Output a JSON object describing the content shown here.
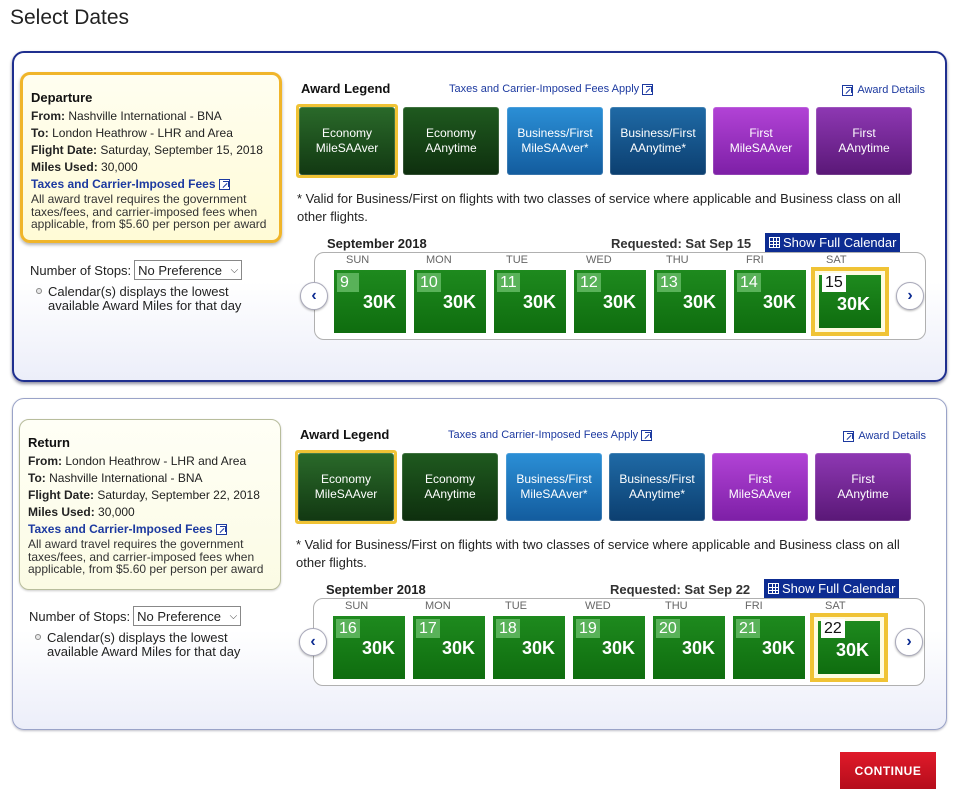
{
  "page_title": "Select Dates",
  "legend": {
    "title": "Award Legend",
    "fees_apply": "Taxes and Carrier-Imposed Fees Apply",
    "award_details": "Award Details",
    "items": [
      {
        "line1": "Economy",
        "line2": "MileSAAver"
      },
      {
        "line1": "Economy",
        "line2": "AAnytime"
      },
      {
        "line1": "Business/First",
        "line2": "MileSAAver*"
      },
      {
        "line1": "Business/First",
        "line2": "AAnytime*"
      },
      {
        "line1": "First",
        "line2": "MileSAAver"
      },
      {
        "line1": "First",
        "line2": "AAnytime"
      }
    ],
    "valid_note": "* Valid for Business/First on flights with two classes of service where applicable and Business class on all other flights."
  },
  "labels": {
    "from": "From:",
    "to": "To:",
    "flight_date": "Flight Date:",
    "miles_used": "Miles Used:",
    "fees_link": "Taxes and Carrier-Imposed Fees",
    "fees_note": "All award travel requires the government taxes/fees, and carrier-imposed fees when applicable, from $5.60 per person per award",
    "stops_label": "Number of Stops:",
    "stops_value": "No Preference",
    "cal_note": "Calendar(s) displays the lowest available Award Miles for that day",
    "show_full_calendar": "Show Full Calendar"
  },
  "days_of_week": [
    "SUN",
    "MON",
    "TUE",
    "WED",
    "THU",
    "FRI",
    "SAT"
  ],
  "departure": {
    "heading": "Departure",
    "from": "Nashville International - BNA",
    "to": "London Heathrow - LHR and Area",
    "flight_date": "Saturday, September 15, 2018",
    "miles_used": "30,000",
    "month": "September 2018",
    "requested": "Requested: Sat Sep 15",
    "days": [
      {
        "day": "9",
        "miles": "30K"
      },
      {
        "day": "10",
        "miles": "30K"
      },
      {
        "day": "11",
        "miles": "30K"
      },
      {
        "day": "12",
        "miles": "30K"
      },
      {
        "day": "13",
        "miles": "30K"
      },
      {
        "day": "14",
        "miles": "30K"
      },
      {
        "day": "15",
        "miles": "30K"
      }
    ]
  },
  "return": {
    "heading": "Return",
    "from": "London Heathrow - LHR and Area",
    "to": "Nashville International - BNA",
    "flight_date": "Saturday, September 22, 2018",
    "miles_used": "30,000",
    "month": "September 2018",
    "requested": "Requested: Sat Sep 22",
    "days": [
      {
        "day": "16",
        "miles": "30K"
      },
      {
        "day": "17",
        "miles": "30K"
      },
      {
        "day": "18",
        "miles": "30K"
      },
      {
        "day": "19",
        "miles": "30K"
      },
      {
        "day": "20",
        "miles": "30K"
      },
      {
        "day": "21",
        "miles": "30K"
      },
      {
        "day": "22",
        "miles": "30K"
      }
    ]
  },
  "continue_label": "CONTINUE"
}
